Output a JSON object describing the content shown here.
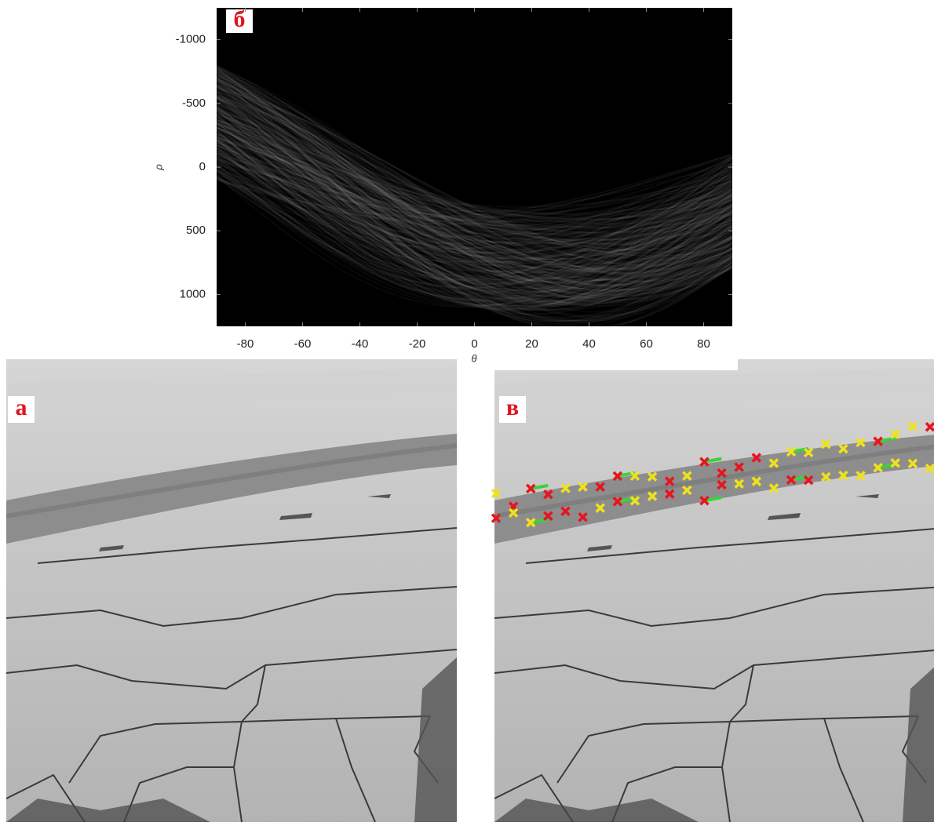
{
  "chart_data": {
    "type": "hough-image",
    "panel_label": "б",
    "x_label": "θ",
    "y_label": "ρ",
    "xlim": [
      -90,
      90
    ],
    "xticks": [
      -80,
      -60,
      -40,
      -20,
      0,
      20,
      40,
      60,
      80
    ],
    "ylim": [
      -1250,
      1250
    ],
    "yticks": [
      -1000,
      -500,
      0,
      500,
      1000
    ],
    "y_reversed": true
  },
  "panels": [
    {
      "label": "а"
    },
    {
      "label": "в"
    }
  ]
}
